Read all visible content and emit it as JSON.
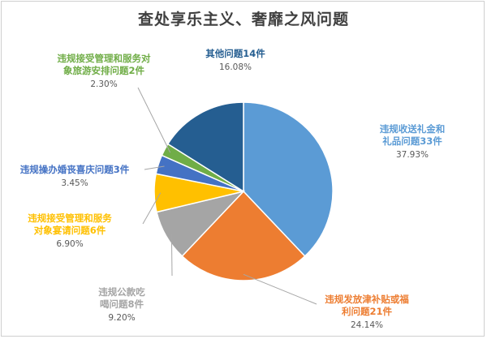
{
  "chart_data": {
    "type": "pie",
    "title": "查处享乐主义、奢靡之风问题",
    "slices": [
      {
        "name": "违规收送礼金和礼品问题33件",
        "label_lines": [
          "违规收送礼金和",
          "礼品问题33件"
        ],
        "percent_text": "37.93%",
        "value": 37.93,
        "color": "#5B9BD5"
      },
      {
        "name": "违规发放津补贴或福利问题21件",
        "label_lines": [
          "违规发放津补贴或福",
          "利问题21件"
        ],
        "percent_text": "24.14%",
        "value": 24.14,
        "color": "#ED7D31"
      },
      {
        "name": "违规公款吃喝问题8件",
        "label_lines": [
          "违规公款吃",
          "喝问题8件"
        ],
        "percent_text": "9.20%",
        "value": 9.2,
        "color": "#A5A5A5"
      },
      {
        "name": "违规接受管理和服务对象宴请问题6件",
        "label_lines": [
          "违规接受管理和服务",
          "对象宴请问题6件"
        ],
        "percent_text": "6.90%",
        "value": 6.9,
        "color": "#FFC000"
      },
      {
        "name": "违规操办婚丧喜庆问题3件",
        "label_lines": [
          "违规操办婚丧喜庆问题3件"
        ],
        "percent_text": "3.45%",
        "value": 3.45,
        "color": "#4472C4"
      },
      {
        "name": "违规接受管理和服务对象旅游安排问题2件",
        "label_lines": [
          "违规接受管理和服务对",
          "象旅游安排问题2件"
        ],
        "percent_text": "2.30%",
        "value": 2.3,
        "color": "#70AD47"
      },
      {
        "name": "其他问题14件",
        "label_lines": [
          "其他问题14件"
        ],
        "percent_text": "16.08%",
        "value": 16.08,
        "color": "#255E91"
      }
    ],
    "label_colors": [
      "#5B9BD5",
      "#ED7D31",
      "#A5A5A5",
      "#FFC000",
      "#4472C4",
      "#70AD47",
      "#255E91"
    ],
    "start_angle_deg": 0,
    "direction": "clockwise"
  }
}
